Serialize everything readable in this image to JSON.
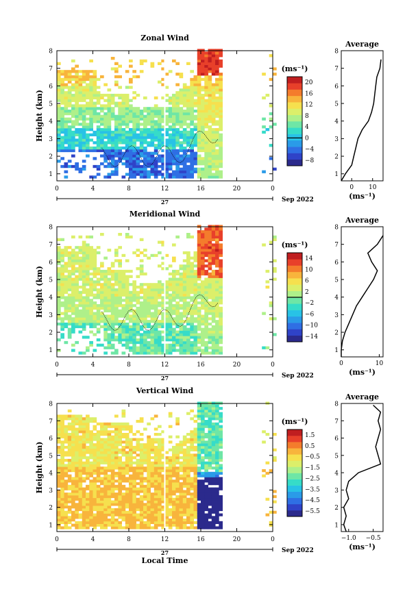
{
  "chart_data": [
    {
      "type": "heatmap",
      "title": "Zonal Wind",
      "ylabel": "Height (km)",
      "xticks": [
        "0",
        "4",
        "8",
        "12",
        "16",
        "20",
        "0"
      ],
      "yticks": [
        "1",
        "2",
        "3",
        "4",
        "5",
        "6",
        "7",
        "8"
      ],
      "ylim": [
        0.6,
        8
      ],
      "xlim": [
        0,
        24
      ],
      "colorbar": {
        "unit": "(ms⁻¹)",
        "ticks": [
          "20",
          "16",
          "12",
          "8",
          "4",
          "0",
          "−4",
          "−8"
        ],
        "min": -10,
        "max": 22,
        "zero_line": 0
      },
      "profile": {
        "title": "Average",
        "xticks": [
          "0",
          "10"
        ],
        "xlabel": "(ms⁻¹)",
        "xlim": [
          -5,
          15
        ],
        "heights": [
          0.6,
          1.0,
          1.5,
          2.0,
          2.5,
          3.0,
          3.5,
          4.0,
          4.5,
          5.0,
          5.5,
          6.0,
          6.5,
          7.0,
          7.5
        ],
        "values": [
          -5,
          -3,
          0,
          1,
          2,
          3,
          5,
          8,
          9.5,
          10.5,
          11,
          11.5,
          12,
          13.5,
          14
        ]
      }
    },
    {
      "type": "heatmap",
      "title": "Meridional Wind",
      "ylabel": "Height (km)",
      "xticks": [
        "0",
        "4",
        "8",
        "12",
        "16",
        "20",
        "0"
      ],
      "yticks": [
        "1",
        "2",
        "3",
        "4",
        "5",
        "6",
        "7",
        "8"
      ],
      "ylim": [
        0.6,
        8
      ],
      "xlim": [
        0,
        24
      ],
      "colorbar": {
        "unit": "(ms⁻¹)",
        "ticks": [
          "14",
          "10",
          "6",
          "2",
          "−2",
          "−6",
          "−10",
          "−14"
        ],
        "min": -16,
        "max": 16,
        "zero_line": 0
      },
      "profile": {
        "title": "Average",
        "xticks": [
          "0",
          "10"
        ],
        "xlabel": "(ms⁻¹)",
        "xlim": [
          0,
          11
        ],
        "heights": [
          0.6,
          1.0,
          1.5,
          2.0,
          2.5,
          3.0,
          3.5,
          4.0,
          4.5,
          5.0,
          5.5,
          6.0,
          6.5,
          7.0,
          7.5
        ],
        "values": [
          0,
          0,
          0.3,
          1,
          2,
          3,
          4,
          5.5,
          7,
          8.5,
          9.5,
          8,
          7,
          9.5,
          11
        ]
      }
    },
    {
      "type": "heatmap",
      "title": "Vertical Wind",
      "ylabel": "Height (km)",
      "xlabel": "Local Time",
      "xticks": [
        "0",
        "4",
        "8",
        "12",
        "16",
        "20",
        "0"
      ],
      "yticks": [
        "1",
        "2",
        "3",
        "4",
        "5",
        "6",
        "7",
        "8"
      ],
      "ylim": [
        0.6,
        8
      ],
      "xlim": [
        0,
        24
      ],
      "colorbar": {
        "unit": "(ms⁻¹)",
        "ticks": [
          "1.5",
          "0.5",
          "−0.5",
          "−1.5",
          "−2.5",
          "−3.5",
          "−4.5",
          "−5.5"
        ],
        "min": -6,
        "max": 2,
        "zero_line": null
      },
      "profile": {
        "title": "Average",
        "xticks": [
          "−1.0",
          "−0.5"
        ],
        "xlabel": "(ms⁻¹)",
        "xlim": [
          -1.15,
          -0.3
        ],
        "heights": [
          0.6,
          1.0,
          1.5,
          2.0,
          2.5,
          3.0,
          3.5,
          4.0,
          4.5,
          5.0,
          5.5,
          6.0,
          6.5,
          7.0,
          7.5,
          7.9
        ],
        "values": [
          -1.05,
          -1.1,
          -1.05,
          -1.1,
          -1.0,
          -1.05,
          -1.0,
          -0.8,
          -0.35,
          -0.4,
          -0.45,
          -0.4,
          -0.35,
          -0.4,
          -0.35,
          -0.5
        ]
      }
    }
  ],
  "date_label": "27",
  "month_label": "Sep 2022"
}
